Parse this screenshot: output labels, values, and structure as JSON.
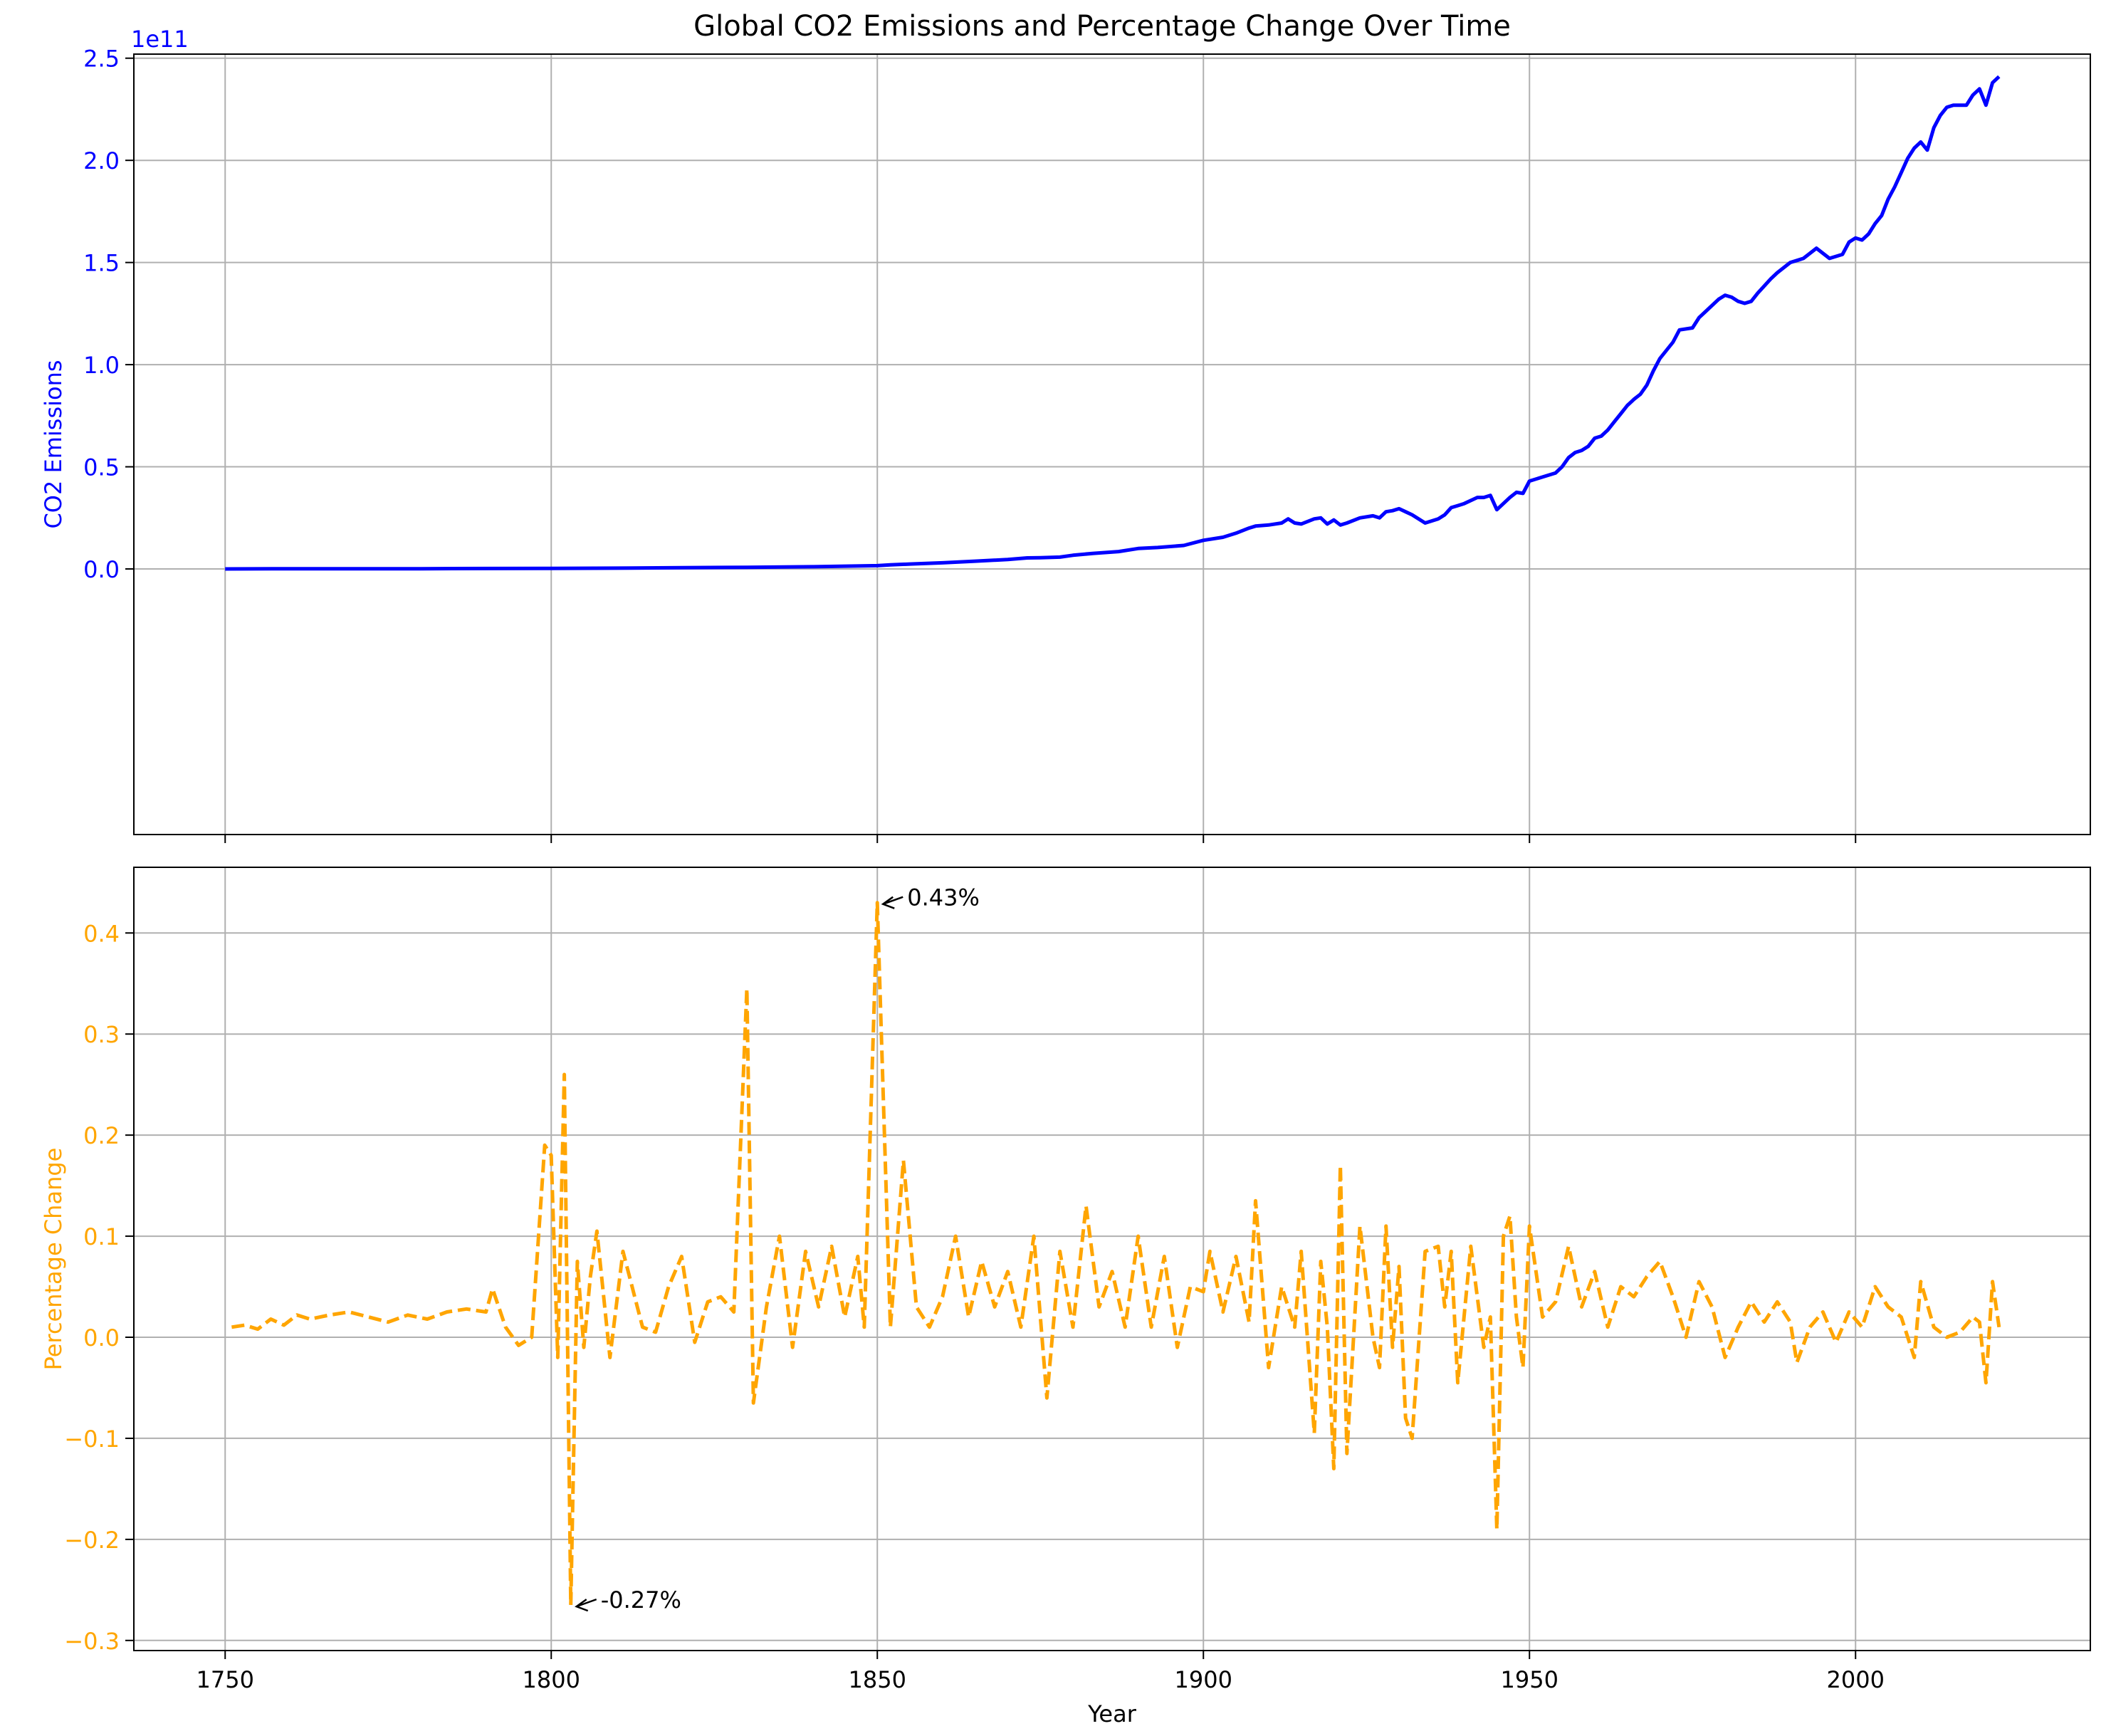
{
  "figure": {
    "title": "Global CO2 Emissions and Percentage Change Over Time"
  },
  "chart_data": [
    {
      "type": "line",
      "name": "top-panel",
      "ylabel": "CO2 Emissions",
      "y_offset_text": "1e11",
      "ylim": [
        -1.3,
        2.52
      ],
      "xlim": [
        1736,
        2036
      ],
      "xticks": [
        1750,
        1800,
        1850,
        1900,
        1950,
        2000
      ],
      "yticks": [
        0.0,
        0.5,
        1.0,
        1.5,
        2.0,
        2.5
      ],
      "ytick_labels": [
        "0.0",
        "0.5",
        "1.0",
        "1.5",
        "2.0",
        "2.5"
      ],
      "grid": true,
      "color": "#0000ff",
      "line_style": "solid",
      "x": [
        1750,
        1760,
        1770,
        1780,
        1790,
        1800,
        1810,
        1820,
        1830,
        1840,
        1850,
        1852,
        1855,
        1860,
        1865,
        1870,
        1873,
        1875,
        1878,
        1880,
        1883,
        1887,
        1890,
        1893,
        1897,
        1900,
        1903,
        1905,
        1907,
        1908,
        1910,
        1912,
        1913,
        1914,
        1915,
        1917,
        1918,
        1919,
        1920,
        1921,
        1922,
        1924,
        1926,
        1927,
        1928,
        1929,
        1930,
        1931,
        1932,
        1934,
        1936,
        1937,
        1938,
        1939,
        1940,
        1942,
        1943,
        1944,
        1945,
        1946,
        1947,
        1948,
        1949,
        1950,
        1952,
        1954,
        1955,
        1956,
        1957,
        1958,
        1959,
        1960,
        1961,
        1962,
        1963,
        1964,
        1965,
        1966,
        1967,
        1968,
        1969,
        1970,
        1972,
        1973,
        1975,
        1976,
        1977,
        1979,
        1980,
        1981,
        1982,
        1983,
        1984,
        1985,
        1987,
        1988,
        1990,
        1991,
        1992,
        1994,
        1996,
        1998,
        1999,
        2000,
        2001,
        2002,
        2003,
        2004,
        2005,
        2006,
        2007,
        2008,
        2009,
        2010,
        2011,
        2012,
        2013,
        2014,
        2015,
        2016,
        2017,
        2018,
        2019,
        2020,
        2021,
        2022
      ],
      "y": [
        0.0,
        0.001,
        0.001,
        0.001,
        0.002,
        0.003,
        0.004,
        0.006,
        0.008,
        0.011,
        0.016,
        0.02,
        0.024,
        0.03,
        0.038,
        0.046,
        0.054,
        0.055,
        0.058,
        0.067,
        0.076,
        0.085,
        0.1,
        0.105,
        0.115,
        0.14,
        0.155,
        0.175,
        0.2,
        0.21,
        0.215,
        0.225,
        0.245,
        0.225,
        0.22,
        0.245,
        0.25,
        0.22,
        0.24,
        0.215,
        0.225,
        0.25,
        0.26,
        0.25,
        0.28,
        0.285,
        0.295,
        0.28,
        0.265,
        0.225,
        0.245,
        0.265,
        0.3,
        0.31,
        0.32,
        0.35,
        0.35,
        0.36,
        0.29,
        0.32,
        0.35,
        0.375,
        0.37,
        0.43,
        0.45,
        0.47,
        0.5,
        0.545,
        0.57,
        0.58,
        0.6,
        0.64,
        0.65,
        0.68,
        0.72,
        0.76,
        0.8,
        0.83,
        0.855,
        0.9,
        0.97,
        1.03,
        1.11,
        1.17,
        1.18,
        1.23,
        1.26,
        1.32,
        1.34,
        1.33,
        1.31,
        1.3,
        1.31,
        1.35,
        1.42,
        1.45,
        1.5,
        1.51,
        1.52,
        1.57,
        1.52,
        1.54,
        1.6,
        1.62,
        1.61,
        1.64,
        1.69,
        1.73,
        1.81,
        1.87,
        1.94,
        2.01,
        2.06,
        2.09,
        2.05,
        2.16,
        2.22,
        2.26,
        2.27,
        2.27,
        2.27,
        2.32,
        2.35,
        2.27,
        2.38,
        2.41
      ]
    },
    {
      "type": "line",
      "name": "bottom-panel",
      "xlabel": "Year",
      "ylabel": "Percentage Change",
      "ylim": [
        -0.31,
        0.465
      ],
      "xlim": [
        1736,
        2036
      ],
      "xticks": [
        1750,
        1800,
        1850,
        1900,
        1950,
        2000
      ],
      "xtick_labels": [
        "1750",
        "1800",
        "1850",
        "1900",
        "1950",
        "2000"
      ],
      "yticks": [
        -0.3,
        -0.2,
        -0.1,
        0.0,
        0.1,
        0.2,
        0.3,
        0.4
      ],
      "ytick_labels": [
        "−0.3",
        "−0.2",
        "−0.1",
        "0.0",
        "0.1",
        "0.2",
        "0.3",
        "0.4"
      ],
      "grid": true,
      "color": "#ffa500",
      "line_style": "dashed",
      "x": [
        1751,
        1753,
        1755,
        1757,
        1759,
        1761,
        1763,
        1766,
        1769,
        1772,
        1775,
        1778,
        1781,
        1784,
        1787,
        1790,
        1791,
        1793,
        1795,
        1797,
        1799,
        1800,
        1801,
        1802,
        1803,
        1804,
        1805,
        1806,
        1807,
        1809,
        1811,
        1814,
        1816,
        1818,
        1820,
        1822,
        1824,
        1826,
        1828,
        1830,
        1831,
        1833,
        1835,
        1837,
        1839,
        1841,
        1843,
        1845,
        1847,
        1848,
        1850,
        1852,
        1854,
        1856,
        1858,
        1860,
        1862,
        1864,
        1866,
        1868,
        1870,
        1872,
        1874,
        1876,
        1878,
        1880,
        1882,
        1884,
        1886,
        1888,
        1890,
        1892,
        1894,
        1896,
        1898,
        1900,
        1901,
        1903,
        1905,
        1907,
        1908,
        1910,
        1912,
        1914,
        1915,
        1917,
        1918,
        1919,
        1920,
        1921,
        1922,
        1924,
        1926,
        1927,
        1928,
        1929,
        1930,
        1931,
        1932,
        1934,
        1936,
        1937,
        1938,
        1939,
        1941,
        1943,
        1944,
        1945,
        1946,
        1947,
        1948,
        1949,
        1950,
        1952,
        1954,
        1956,
        1958,
        1960,
        1962,
        1964,
        1966,
        1968,
        1970,
        1972,
        1974,
        1976,
        1978,
        1980,
        1982,
        1984,
        1986,
        1988,
        1990,
        1991,
        1993,
        1995,
        1997,
        1999,
        2001,
        2003,
        2005,
        2007,
        2009,
        2010,
        2012,
        2014,
        2016,
        2018,
        2019,
        2020,
        2021,
        2022
      ],
      "y": [
        0.01,
        0.012,
        0.008,
        0.018,
        0.012,
        0.022,
        0.018,
        0.022,
        0.025,
        0.02,
        0.015,
        0.022,
        0.018,
        0.025,
        0.028,
        0.025,
        0.048,
        0.01,
        -0.008,
        0.0,
        0.19,
        0.18,
        -0.02,
        0.26,
        -0.265,
        0.075,
        -0.01,
        0.06,
        0.105,
        -0.02,
        0.085,
        0.01,
        0.005,
        0.05,
        0.08,
        -0.005,
        0.035,
        0.04,
        0.025,
        0.345,
        -0.065,
        0.03,
        0.1,
        -0.01,
        0.085,
        0.03,
        0.09,
        0.02,
        0.08,
        0.01,
        0.43,
        0.01,
        0.175,
        0.03,
        0.01,
        0.04,
        0.1,
        0.02,
        0.075,
        0.03,
        0.065,
        0.01,
        0.1,
        -0.06,
        0.085,
        0.01,
        0.13,
        0.03,
        0.065,
        0.01,
        0.1,
        0.01,
        0.08,
        -0.01,
        0.05,
        0.045,
        0.085,
        0.025,
        0.08,
        0.015,
        0.135,
        -0.03,
        0.05,
        0.01,
        0.085,
        -0.095,
        0.075,
        0.01,
        -0.13,
        0.17,
        -0.115,
        0.11,
        0.0,
        -0.03,
        0.11,
        -0.01,
        0.07,
        -0.08,
        -0.1,
        0.085,
        0.09,
        0.03,
        0.085,
        -0.045,
        0.09,
        -0.01,
        0.02,
        -0.19,
        0.1,
        0.12,
        0.02,
        -0.03,
        0.11,
        0.02,
        0.035,
        0.09,
        0.03,
        0.065,
        0.01,
        0.05,
        0.04,
        0.06,
        0.075,
        0.04,
        0.0,
        0.055,
        0.03,
        -0.02,
        0.01,
        0.035,
        0.015,
        0.035,
        0.015,
        -0.025,
        0.01,
        0.025,
        -0.005,
        0.025,
        0.01,
        0.05,
        0.03,
        0.02,
        -0.02,
        0.055,
        0.01,
        0.0,
        0.005,
        0.02,
        0.015,
        -0.045,
        0.055,
        0.01
      ],
      "annotations": [
        {
          "text": "0.43%",
          "x": 1850,
          "y": 0.43
        },
        {
          "text": "-0.27%",
          "x": 1803,
          "y": -0.265
        }
      ]
    }
  ]
}
